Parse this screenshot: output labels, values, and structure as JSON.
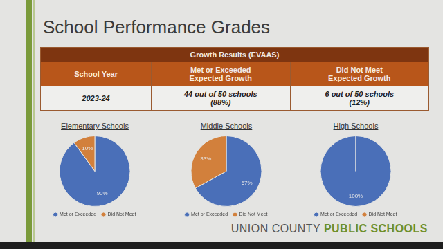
{
  "title": "School Performance Grades",
  "table": {
    "caption": "Growth Results (EVAAS)",
    "header": [
      "School Year",
      "Met or Exceeded\nExpected Growth",
      "Did Not Meet\nExpected Growth"
    ],
    "rows": [
      [
        "2023-24",
        "44 out of 50 schools\n(88%)",
        "6 out of 50 schools\n(12%)"
      ]
    ]
  },
  "footer": [
    "UNION COUNTY",
    "PUBLIC SCHOOLS"
  ],
  "chart_data": [
    {
      "type": "pie",
      "title": "Elementary Schools",
      "categories": [
        "Met or Exceeded",
        "Did Not Meet"
      ],
      "values": [
        90,
        10
      ],
      "value_labels": [
        "90%",
        "10%"
      ],
      "colors": [
        "#4a6fb8",
        "#d2803c"
      ],
      "data_labels": true,
      "legend": "bottom"
    },
    {
      "type": "pie",
      "title": "Middle Schools",
      "categories": [
        "Met or Exceeded",
        "Did Not Meet"
      ],
      "values": [
        67,
        33
      ],
      "value_labels": [
        "67%",
        "33%"
      ],
      "colors": [
        "#4a6fb8",
        "#d2803c"
      ],
      "data_labels": true,
      "legend": "bottom"
    },
    {
      "type": "pie",
      "title": "High Schools",
      "categories": [
        "Met or Exceeded",
        "Did Not Meet"
      ],
      "values": [
        100,
        0
      ],
      "value_labels": [
        "100%",
        null
      ],
      "colors": [
        "#4a6fb8",
        "#d2803c"
      ],
      "data_labels": true,
      "legend": "bottom"
    }
  ]
}
